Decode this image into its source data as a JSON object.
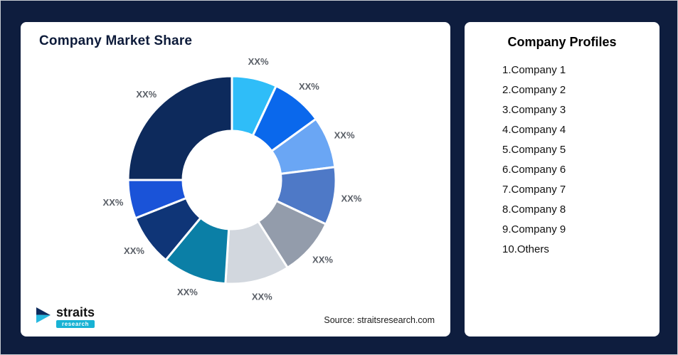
{
  "page": {
    "background": "#0e1d3e",
    "card_background": "#ffffff"
  },
  "market_share_card": {
    "title": "Company Market Share",
    "source": "Source: straitsresearch.com",
    "logo": {
      "brand": "straits",
      "sub_brand": "research"
    }
  },
  "profiles_card": {
    "title": "Company Profiles",
    "items": [
      "1.Company 1",
      "2.Company 2",
      "3.Company 3",
      "4.Company 4",
      "5.Company 5",
      "6.Company 6",
      "7.Company 7",
      "8.Company 8",
      "9.Company 9",
      "10.Others"
    ]
  },
  "chart_data": {
    "type": "pie",
    "subtype": "donut",
    "title": "Company Market Share",
    "categories": [
      "Company 1",
      "Company 2",
      "Company 3",
      "Company 4",
      "Company 5",
      "Company 6",
      "Company 7",
      "Company 8",
      "Company 9",
      "Others"
    ],
    "labels": [
      "XX%",
      "XX%",
      "XX%",
      "XX%",
      "XX%",
      "XX%",
      "XX%",
      "XX%",
      "XX%",
      "XX%"
    ],
    "values": [
      7,
      8,
      8,
      9,
      9,
      10,
      10,
      8,
      6,
      25
    ],
    "colors": [
      "#2fbdf8",
      "#0a68ec",
      "#6aa6f4",
      "#4e79c7",
      "#939cab",
      "#d2d7de",
      "#0b7fa6",
      "#0f3577",
      "#1a53d8",
      "#0d2a5c"
    ],
    "start_angle_deg": 0,
    "direction": "clockwise",
    "inner_radius_ratio": 0.47,
    "legend": false,
    "grid": false
  }
}
